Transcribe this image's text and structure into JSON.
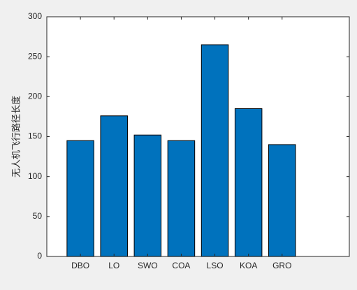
{
  "chart_data": {
    "type": "bar",
    "categories": [
      "DBO",
      "LO",
      "SWO",
      "COA",
      "LSO",
      "KOA",
      "GRO"
    ],
    "values": [
      145,
      176,
      152,
      145,
      265,
      185,
      140
    ],
    "title": "",
    "xlabel": "",
    "ylabel": "无人机飞行路径长度",
    "ylim": [
      0,
      300
    ],
    "yticks": [
      0,
      50,
      100,
      150,
      200,
      250,
      300
    ],
    "grid": false,
    "legend": "none",
    "colors": {
      "bar": "#0072bd",
      "bar_edge": "#000000",
      "axes_bg": "#ffffff",
      "figure_bg": "#f0f0f0",
      "axis": "#262626"
    }
  }
}
